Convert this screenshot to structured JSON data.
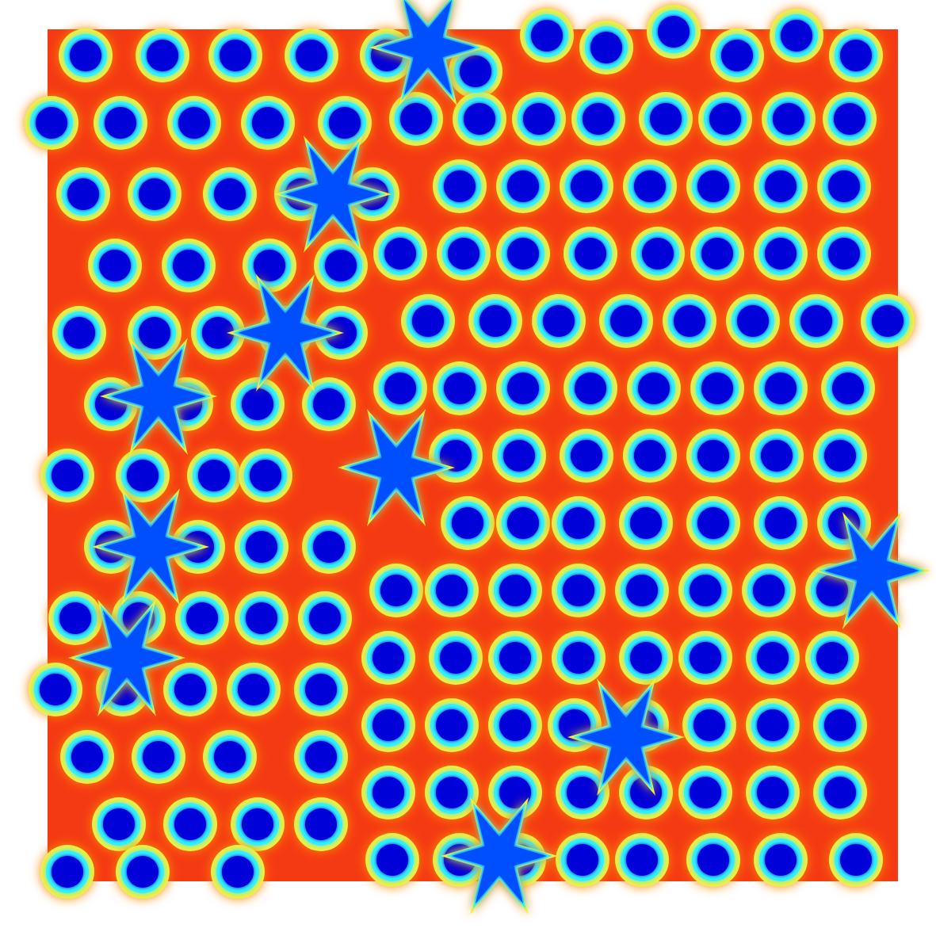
{
  "chart_data": {
    "type": "scatter",
    "xlim": [
      0,
      1073
    ],
    "ylim": [
      0,
      1075
    ],
    "tick_labels": false,
    "grid": false,
    "series": [
      {
        "color": "#0000d8",
        "marker": "circle",
        "x": [
          48,
          145,
          237,
          333,
          428,
          5,
          92,
          185,
          278,
          375,
          45,
          135,
          230,
          320,
          410,
          85,
          178,
          280,
          370,
          40,
          135,
          215,
          300,
          370,
          80,
          175,
          265,
          355,
          25,
          120,
          210,
          275,
          80,
          190,
          270,
          355,
          35,
          115,
          195,
          270,
          350,
          10,
          95,
          180,
          260,
          345,
          50,
          140,
          230,
          345,
          90,
          180,
          265,
          345,
          25,
          120,
          240,
          540,
          630,
          705,
          790,
          870,
          945,
          1020,
          465,
          545,
          620,
          695,
          780,
          855,
          935,
          1012,
          520,
          600,
          680,
          760,
          840,
          925,
          1005,
          445,
          525,
          600,
          685,
          770,
          845,
          925,
          1005,
          480,
          565,
          645,
          730,
          810,
          890,
          970,
          1060,
          445,
          520,
          600,
          685,
          765,
          845,
          925,
          1010,
          515,
          595,
          680,
          760,
          840,
          920,
          1000,
          530,
          600,
          670,
          755,
          840,
          925,
          1005,
          440,
          510,
          590,
          670,
          750,
          830,
          910,
          990,
          430,
          515,
          590,
          670,
          755,
          830,
          915,
          990,
          430,
          510,
          590,
          665,
          750,
          835,
          915,
          1000,
          430,
          510,
          590,
          675,
          755,
          830,
          915,
          1000,
          435,
          520,
          595,
          675,
          750,
          840,
          925,
          1020
        ],
        "y": [
          33,
          33,
          33,
          33,
          33,
          118,
          118,
          118,
          118,
          118,
          208,
          208,
          208,
          208,
          208,
          298,
          298,
          298,
          298,
          383,
          383,
          383,
          383,
          383,
          473,
          473,
          473,
          473,
          563,
          563,
          563,
          563,
          653,
          653,
          653,
          653,
          743,
          743,
          743,
          743,
          743,
          833,
          833,
          833,
          833,
          833,
          918,
          918,
          918,
          918,
          1003,
          1003,
          1003,
          1003,
          1063,
          1063,
          1063,
          53,
          8,
          23,
          3,
          33,
          8,
          33,
          113,
          113,
          113,
          113,
          113,
          113,
          113,
          113,
          198,
          198,
          198,
          198,
          198,
          198,
          198,
          283,
          283,
          283,
          283,
          283,
          283,
          283,
          283,
          368,
          368,
          368,
          368,
          368,
          368,
          368,
          368,
          453,
          453,
          453,
          453,
          453,
          453,
          453,
          453,
          538,
          538,
          538,
          538,
          538,
          538,
          538,
          623,
          623,
          623,
          623,
          623,
          623,
          623,
          708,
          708,
          708,
          708,
          708,
          708,
          708,
          708,
          793,
          793,
          793,
          793,
          793,
          793,
          793,
          793,
          878,
          878,
          878,
          878,
          878,
          878,
          878,
          878,
          963,
          963,
          963,
          963,
          963,
          963,
          963,
          963,
          1048,
          1048,
          1048,
          1048,
          1048,
          1048,
          1048,
          1048
        ]
      },
      {
        "color": "#0050ff",
        "marker": "star",
        "x": [
          440,
          360,
          300,
          140,
          130,
          100,
          730,
          570,
          1040,
          480
        ],
        "y": [
          553,
          208,
          383,
          463,
          653,
          793,
          893,
          1043,
          683,
          23
        ]
      }
    ]
  }
}
